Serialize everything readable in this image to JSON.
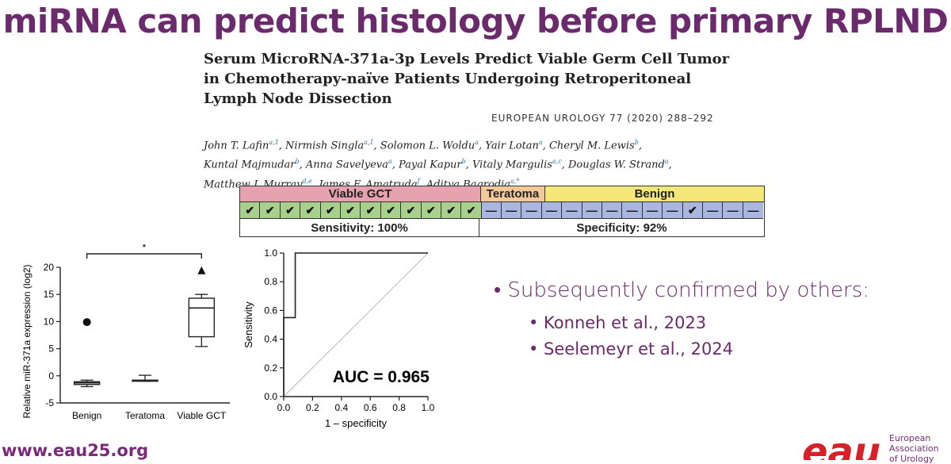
{
  "slide_title": "miRNA can predict histology before primary RPLND",
  "paper": {
    "title_lines": [
      "Serum MicroRNA-371a-3p Levels Predict Viable Germ Cell Tumor",
      "in Chemotherapy-naïve Patients Undergoing Retroperitoneal",
      "Lymph Node Dissection"
    ],
    "journal": "EUROPEAN UROLOGY 77 (2020) 288–292",
    "authors": [
      {
        "name": "John T. Lafin",
        "sup": "a,1",
        "sep": ", "
      },
      {
        "name": "Nirmish Singla",
        "sup": "a,1",
        "sep": ", "
      },
      {
        "name": "Solomon L. Woldu",
        "sup": "a",
        "sep": ", "
      },
      {
        "name": "Yair Lotan",
        "sup": "a",
        "sep": ", "
      },
      {
        "name": "Cheryl M. Lewis",
        "sup": "b",
        "sep": ","
      },
      {
        "name": "Kuntal Majmudar",
        "sup": "b",
        "sep": ", "
      },
      {
        "name": "Anna Savelyeva",
        "sup": "a",
        "sep": ", "
      },
      {
        "name": "Payal Kapur",
        "sup": "b",
        "sep": ", "
      },
      {
        "name": "Vitaly Margulis",
        "sup": "a,c",
        "sep": ", "
      },
      {
        "name": "Douglas W. Strand",
        "sup": "a",
        "sep": ","
      },
      {
        "name": "Matthew J. Murray",
        "sup": "d,e",
        "sep": ", "
      },
      {
        "name": "James F. Amatruda",
        "sup": "f",
        "sep": ", "
      },
      {
        "name": "Aditya Bagrodia",
        "sup": "a,*",
        "sep": ""
      }
    ]
  },
  "grid": {
    "headers": [
      {
        "label": "Viable GCT",
        "color": "#e6a3ad"
      },
      {
        "label": "Teratoma",
        "color": "#f4c99a"
      },
      {
        "label": "Benign",
        "color": "#f4e77a"
      }
    ],
    "marks": [
      "✔",
      "✔",
      "✔",
      "✔",
      "✔",
      "✔",
      "✔",
      "✔",
      "✔",
      "✔",
      "✔",
      "✔",
      "—",
      "—",
      "—",
      "—",
      "—",
      "—",
      "—",
      "—",
      "—",
      "—",
      "✔",
      "—",
      "—",
      "—"
    ],
    "footer": [
      "Sensitivity: 100%",
      "Specificity: 92%"
    ]
  },
  "chart_data": [
    {
      "type": "box",
      "title": "",
      "ylabel": "Relative miR-371a expression (log2)",
      "ylim": [
        -5,
        20
      ],
      "yticks": [
        "-5",
        "0",
        "5",
        "10",
        "15",
        "20"
      ],
      "categories": [
        "Benign",
        "Teratoma",
        "Viable GCT"
      ],
      "boxes": [
        {
          "min": -2.0,
          "q1": -1.6,
          "median": -1.3,
          "q3": -1.1,
          "max": -0.8,
          "outliers": [
            9.9
          ]
        },
        {
          "min": -1.0,
          "q1": -1.0,
          "median": -0.9,
          "q3": -0.8,
          "max": 0.1,
          "outliers": []
        },
        {
          "min": 5.4,
          "q1": 7.2,
          "median": 12.5,
          "q3": 14.3,
          "max": 15.0,
          "outliers": [
            19.3
          ]
        }
      ],
      "significance": "*"
    },
    {
      "type": "line",
      "title": "",
      "xlabel": "1 – specificity",
      "ylabel": "Sensitivity",
      "xlim": [
        0,
        1
      ],
      "ylim": [
        0,
        1
      ],
      "ticks": [
        "0.0",
        "0.2",
        "0.4",
        "0.6",
        "0.8",
        "1.0"
      ],
      "series": [
        {
          "values": [
            [
              0,
              0
            ],
            [
              0,
              0.55
            ],
            [
              0.08,
              0.55
            ],
            [
              0.08,
              1.0
            ],
            [
              1.0,
              1.0
            ]
          ]
        }
      ],
      "annotation": "AUC = 0.965"
    }
  ],
  "bullets": {
    "main": "• Subsequently confirmed by others:",
    "sub": [
      "• Konneh et al., 2023",
      "• Seelemeyr et al., 2024"
    ]
  },
  "footer": {
    "url": "www.eau25.org",
    "logo_text": "eau",
    "org_lines": [
      "European",
      "Association",
      "of Urology"
    ],
    "brand_color": "#d8202a"
  }
}
